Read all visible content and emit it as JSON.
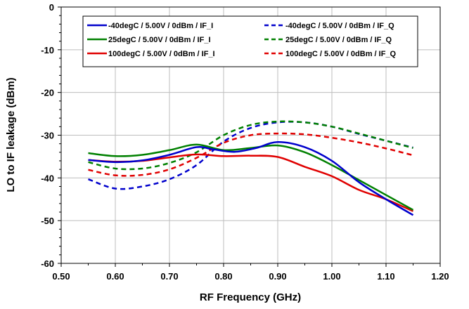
{
  "chart_data": {
    "type": "line",
    "title": "",
    "xlabel": "RF Frequency (GHz)",
    "ylabel": "LO to IF leakage (dBm)",
    "xlim": [
      0.5,
      1.2
    ],
    "ylim": [
      -60,
      0
    ],
    "xticks": [
      "0.50",
      "0.60",
      "0.70",
      "0.80",
      "0.90",
      "1.00",
      "1.10",
      "1.20"
    ],
    "yticks": [
      "0",
      "-10",
      "-20",
      "-30",
      "-40",
      "-50",
      "-60"
    ],
    "grid": true,
    "legend_position": "top",
    "series": [
      {
        "name": "-40degC / 5.00V / 0dBm / IF_I",
        "color": "#0000cc",
        "dash": "solid",
        "x": [
          0.55,
          0.6,
          0.65,
          0.7,
          0.75,
          0.78,
          0.82,
          0.86,
          0.9,
          0.95,
          1.0,
          1.05,
          1.1,
          1.15
        ],
        "y": [
          -35.8,
          -36.3,
          -35.9,
          -34.6,
          -32.8,
          -33.3,
          -33.9,
          -33.0,
          -31.6,
          -32.8,
          -36.0,
          -41.0,
          -45.0,
          -48.7
        ]
      },
      {
        "name": "-40degC / 5.00V / 0dBm / IF_Q",
        "color": "#0000cc",
        "dash": "dashed",
        "x": [
          0.55,
          0.6,
          0.65,
          0.7,
          0.75,
          0.8,
          0.85,
          0.9,
          0.95,
          1.0,
          1.05,
          1.1,
          1.15
        ],
        "y": [
          -40.3,
          -42.5,
          -42.0,
          -40.3,
          -37.0,
          -31.5,
          -28.3,
          -27.0,
          -27.0,
          -28.0,
          -29.7,
          -31.3,
          -32.9
        ]
      },
      {
        "name": "25degC / 5.00V / 0dBm / IF_I",
        "color": "#008000",
        "dash": "solid",
        "x": [
          0.55,
          0.6,
          0.65,
          0.7,
          0.75,
          0.8,
          0.85,
          0.9,
          0.95,
          1.0,
          1.05,
          1.1,
          1.15
        ],
        "y": [
          -34.2,
          -34.9,
          -34.6,
          -33.5,
          -32.2,
          -33.5,
          -33.0,
          -32.4,
          -34.0,
          -37.0,
          -40.5,
          -44.0,
          -47.5
        ]
      },
      {
        "name": "25degC / 5.00V / 0dBm / IF_Q",
        "color": "#008000",
        "dash": "dashed",
        "x": [
          0.55,
          0.6,
          0.65,
          0.7,
          0.75,
          0.8,
          0.85,
          0.9,
          0.95,
          1.0,
          1.05,
          1.1,
          1.15
        ],
        "y": [
          -36.3,
          -37.8,
          -37.8,
          -36.5,
          -34.0,
          -30.0,
          -27.6,
          -26.8,
          -27.0,
          -28.0,
          -29.6,
          -31.3,
          -33.0
        ]
      },
      {
        "name": "100degC / 5.00V / 0dBm / IF_I",
        "color": "#e00000",
        "dash": "solid",
        "x": [
          0.55,
          0.6,
          0.65,
          0.7,
          0.75,
          0.8,
          0.85,
          0.9,
          0.95,
          1.0,
          1.05,
          1.1,
          1.15
        ],
        "y": [
          -35.8,
          -36.2,
          -36.0,
          -35.2,
          -34.5,
          -34.9,
          -34.8,
          -35.1,
          -37.4,
          -39.6,
          -42.8,
          -45.0,
          -47.8
        ]
      },
      {
        "name": "100degC / 5.00V / 0dBm / IF_Q",
        "color": "#e00000",
        "dash": "dashed",
        "x": [
          0.55,
          0.6,
          0.65,
          0.7,
          0.75,
          0.8,
          0.85,
          0.9,
          0.95,
          1.0,
          1.05,
          1.1,
          1.15
        ],
        "y": [
          -38.1,
          -39.4,
          -39.3,
          -38.0,
          -35.3,
          -31.8,
          -30.0,
          -29.6,
          -29.8,
          -30.6,
          -31.7,
          -33.1,
          -34.7
        ]
      }
    ]
  }
}
